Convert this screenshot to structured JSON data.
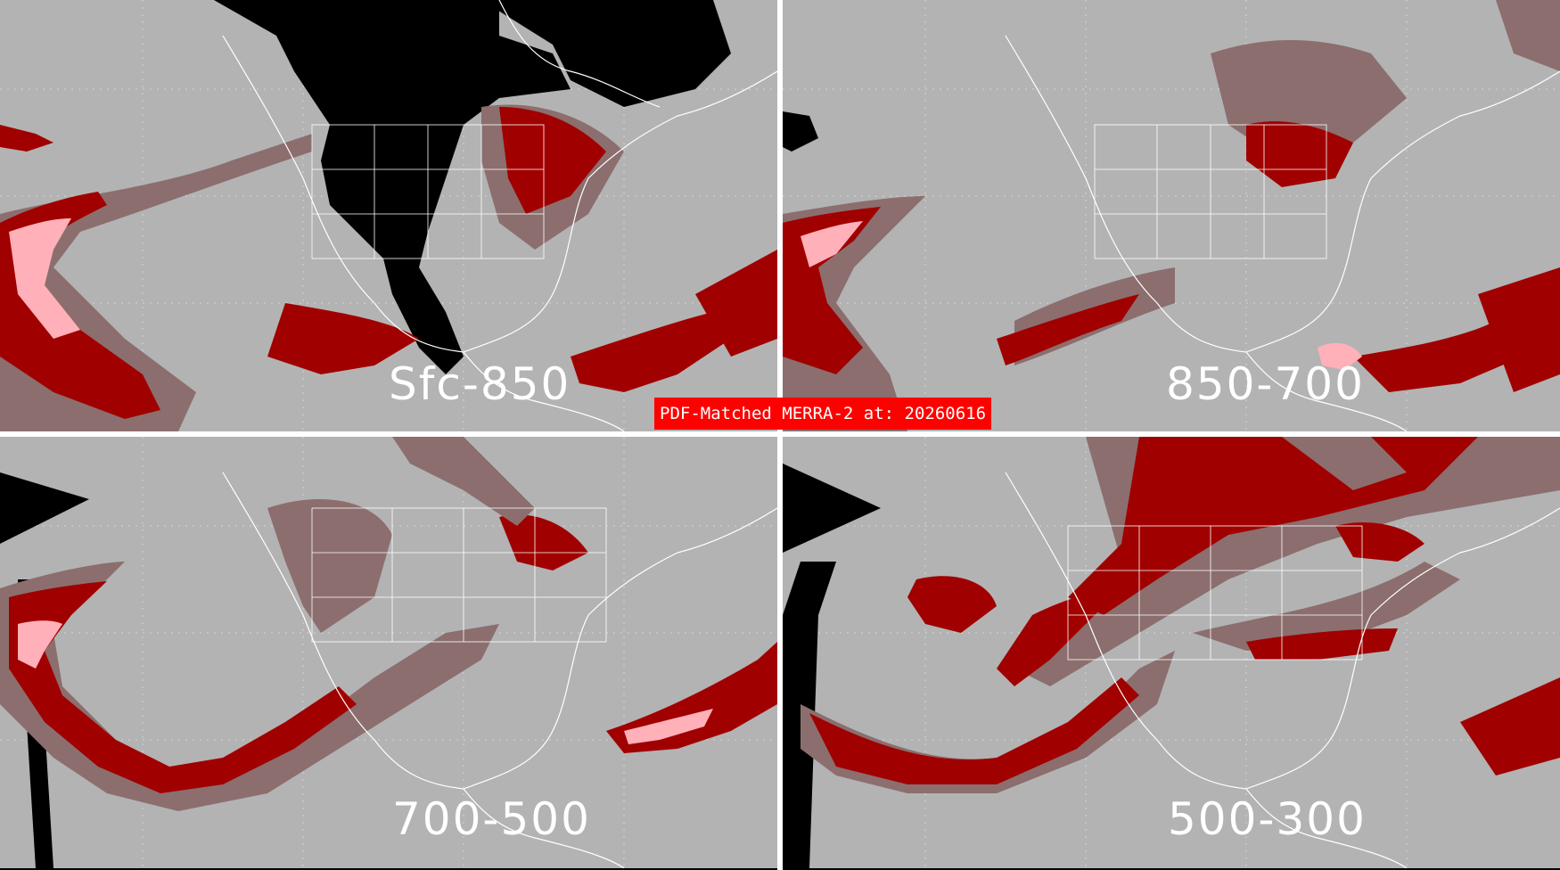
{
  "figure": {
    "title": "PDF-Matched MERRA-2 at: 20260616",
    "colors": {
      "background": "#b3b3b3",
      "dark_red": "#a00000",
      "muted_red": "#8c6e6e",
      "pink": "#ffb0b8",
      "bright_red": "#ff0000",
      "missing": "#000000",
      "coastlines": "#ffffff"
    },
    "panels": [
      {
        "label": "Sfc-850"
      },
      {
        "label": "850-700"
      },
      {
        "label": "700-500"
      },
      {
        "label": "500-300"
      }
    ]
  }
}
